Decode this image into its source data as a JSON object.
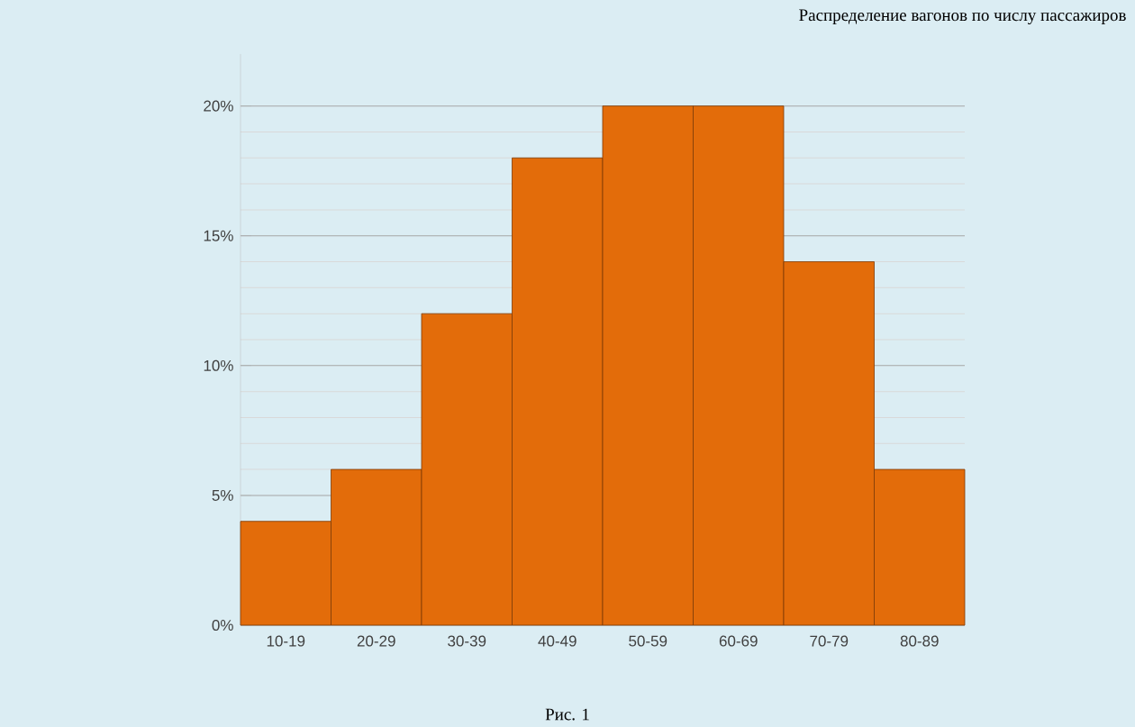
{
  "chart_data": {
    "type": "bar",
    "title": "Распределение вагонов по числу пассажиров",
    "categories": [
      "10-19",
      "20-29",
      "30-39",
      "40-49",
      "50-59",
      "60-69",
      "70-79",
      "80-89"
    ],
    "values": [
      4,
      6,
      12,
      18,
      20,
      20,
      14,
      6
    ],
    "color": "#e36c0a",
    "ylim": [
      0,
      22
    ],
    "yticks": [
      {
        "value": 0,
        "label": "0%"
      },
      {
        "value": 5,
        "label": "5%"
      },
      {
        "value": 10,
        "label": "10%"
      },
      {
        "value": 15,
        "label": "15%"
      },
      {
        "value": 20,
        "label": "20%"
      }
    ],
    "grid": "y",
    "annotations": [
      "Рис. 1"
    ]
  }
}
